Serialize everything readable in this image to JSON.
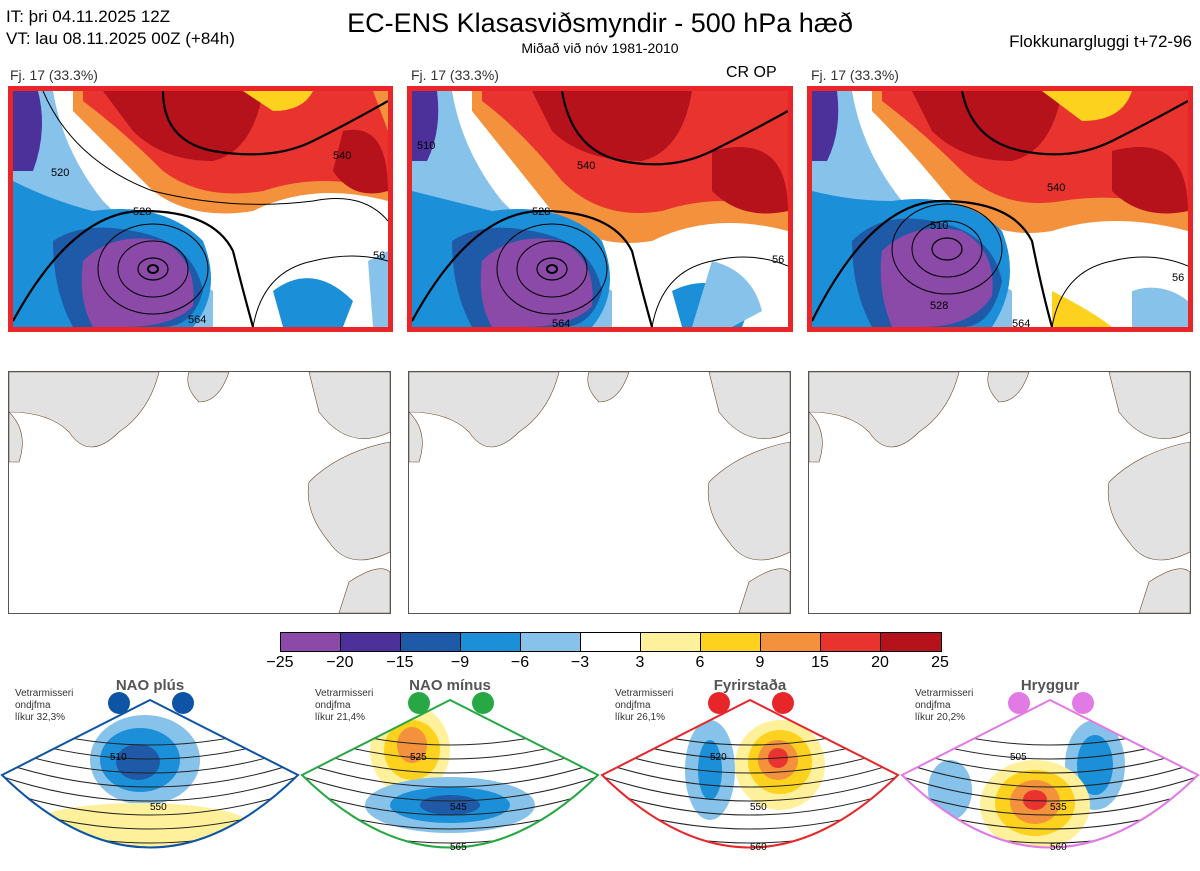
{
  "header": {
    "it_line": "IT: þri 04.11.2025 12Z",
    "vt_line": "VT: lau 08.11.2025 00Z  (+84h)",
    "title": "EC-ENS Klasasviðsmyndir - 500 hPa hæð",
    "subtitle": "Miðað við nóv 1981-2010",
    "window": "Flokkunargluggi t+72-96"
  },
  "panels": [
    {
      "label": "Fj. 17 (33.3%)",
      "contour_labels": [
        "520",
        "528",
        "540",
        "564",
        "56"
      ]
    },
    {
      "label": "Fj. 17 (33.3%)",
      "tag": "CR OP",
      "contour_labels": [
        "510",
        "528",
        "540",
        "564",
        "56"
      ]
    },
    {
      "label": "Fj. 17 (33.3%)",
      "contour_labels": [
        "510",
        "528",
        "540",
        "564",
        "56"
      ]
    }
  ],
  "colorbar": {
    "ticks": [
      "−25",
      "−20",
      "−15",
      "−9",
      "−6",
      "−3",
      "3",
      "6",
      "9",
      "15",
      "20",
      "25"
    ],
    "colors": [
      "#8b4aa8",
      "#4b3199",
      "#1f5aa8",
      "#1b8fd8",
      "#86c2ea",
      "#ffffff",
      "#fff19c",
      "#fdd21e",
      "#f4913c",
      "#e8332f",
      "#b5121b"
    ]
  },
  "climate_patterns": [
    {
      "name": "NAO plús",
      "note1": "Vetrarmisseri",
      "note2": "ondjfma",
      "note3": "líkur 32,3%",
      "color": "#0d55a4",
      "contours": [
        "510",
        "550"
      ]
    },
    {
      "name": "NAO mínus",
      "note1": "Vetrarmisseri",
      "note2": "ondjfma",
      "note3": "líkur 21,4%",
      "color": "#27a844",
      "contours": [
        "525",
        "545",
        "565"
      ]
    },
    {
      "name": "Fyrirstaða",
      "note1": "Vetrarmisseri",
      "note2": "ondjfma",
      "note3": "líkur 26,1%",
      "color": "#e8262a",
      "contours": [
        "520",
        "550",
        "560"
      ]
    },
    {
      "name": "Hryggur",
      "note1": "Vetrarmisseri",
      "note2": "ondjfma",
      "note3": "líkur 20,2%",
      "color": "#e27ae6",
      "contours": [
        "505",
        "535",
        "560"
      ]
    }
  ]
}
